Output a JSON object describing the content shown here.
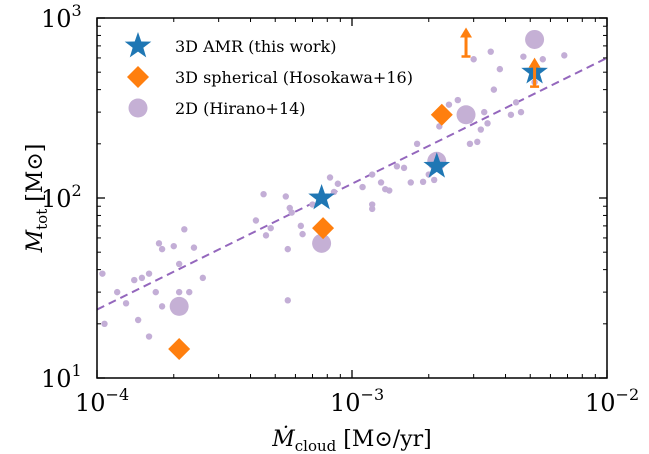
{
  "chart_data": {
    "type": "scatter",
    "xscale": "log",
    "yscale": "log",
    "xlim": [
      0.0001,
      0.01
    ],
    "ylim": [
      10,
      1000
    ],
    "xticks": [
      {
        "value": 0.0001,
        "base": "10",
        "exp": "−4"
      },
      {
        "value": 0.001,
        "base": "10",
        "exp": "−3"
      },
      {
        "value": 0.01,
        "base": "10",
        "exp": "−2"
      }
    ],
    "yticks": [
      {
        "value": 10,
        "base": "10",
        "exp": "1"
      },
      {
        "value": 100,
        "base": "10",
        "exp": "2"
      },
      {
        "value": 1000,
        "base": "10",
        "exp": "3"
      }
    ],
    "xlabel": {
      "main": "Ṁ",
      "sub": "cloud",
      "unit": " [M⊙/yr]"
    },
    "ylabel": {
      "main": "M",
      "sub": "tot",
      "unit": " [M⊙]"
    },
    "legend_position": "top-left",
    "colors": {
      "amr": "#1f77b4",
      "spherical": "#ff7f0e",
      "hirano": "#c5b0d5",
      "hirano_small": "#c3aed6",
      "fit": "#9467bd"
    },
    "series": [
      {
        "name": "3D AMR (this work)",
        "marker": "star",
        "points": [
          {
            "x": 0.00076,
            "y": 100
          },
          {
            "x": 0.00215,
            "y": 150
          },
          {
            "x": 0.0052,
            "y": 500
          }
        ]
      },
      {
        "name": "3D spherical (Hosokawa+16)",
        "marker": "diamond",
        "points": [
          {
            "x": 0.00021,
            "y": 14.5
          },
          {
            "x": 0.00077,
            "y": 68
          },
          {
            "x": 0.00225,
            "y": 290
          }
        ],
        "lower_limits": [
          {
            "x": 0.0028,
            "y": 750
          },
          {
            "x": 0.0052,
            "y": 510
          }
        ]
      },
      {
        "name": "2D (Hirano+14)",
        "marker": "circle",
        "points": [
          {
            "x": 0.00021,
            "y": 25
          },
          {
            "x": 0.00076,
            "y": 56
          },
          {
            "x": 0.00215,
            "y": 160
          },
          {
            "x": 0.0028,
            "y": 290
          },
          {
            "x": 0.0052,
            "y": 760
          }
        ]
      }
    ],
    "background_points": [
      {
        "x": 0.000105,
        "y": 38
      },
      {
        "x": 0.000107,
        "y": 20
      },
      {
        "x": 0.00012,
        "y": 30
      },
      {
        "x": 0.00013,
        "y": 26
      },
      {
        "x": 0.00014,
        "y": 35
      },
      {
        "x": 0.000145,
        "y": 21
      },
      {
        "x": 0.00015,
        "y": 36
      },
      {
        "x": 0.00016,
        "y": 38
      },
      {
        "x": 0.00017,
        "y": 30
      },
      {
        "x": 0.000175,
        "y": 56
      },
      {
        "x": 0.00018,
        "y": 52
      },
      {
        "x": 0.00016,
        "y": 17
      },
      {
        "x": 0.00018,
        "y": 25
      },
      {
        "x": 0.0002,
        "y": 54
      },
      {
        "x": 0.00021,
        "y": 30
      },
      {
        "x": 0.00021,
        "y": 43
      },
      {
        "x": 0.00022,
        "y": 67
      },
      {
        "x": 0.00023,
        "y": 30
      },
      {
        "x": 0.00024,
        "y": 53
      },
      {
        "x": 0.00026,
        "y": 36
      },
      {
        "x": 0.00042,
        "y": 75
      },
      {
        "x": 0.00045,
        "y": 105
      },
      {
        "x": 0.00046,
        "y": 62
      },
      {
        "x": 0.00048,
        "y": 68
      },
      {
        "x": 0.00055,
        "y": 102
      },
      {
        "x": 0.00056,
        "y": 52
      },
      {
        "x": 0.00057,
        "y": 88
      },
      {
        "x": 0.00058,
        "y": 83
      },
      {
        "x": 0.00056,
        "y": 27
      },
      {
        "x": 0.00063,
        "y": 70
      },
      {
        "x": 0.00064,
        "y": 63
      },
      {
        "x": 0.0007,
        "y": 92
      },
      {
        "x": 0.00082,
        "y": 130
      },
      {
        "x": 0.00085,
        "y": 108
      },
      {
        "x": 0.00088,
        "y": 120
      },
      {
        "x": 0.0011,
        "y": 115
      },
      {
        "x": 0.0012,
        "y": 135
      },
      {
        "x": 0.0012,
        "y": 92
      },
      {
        "x": 0.0012,
        "y": 87
      },
      {
        "x": 0.0013,
        "y": 122
      },
      {
        "x": 0.00135,
        "y": 112
      },
      {
        "x": 0.0014,
        "y": 110
      },
      {
        "x": 0.0015,
        "y": 150
      },
      {
        "x": 0.0016,
        "y": 147
      },
      {
        "x": 0.0017,
        "y": 122
      },
      {
        "x": 0.0018,
        "y": 200
      },
      {
        "x": 0.0019,
        "y": 123
      },
      {
        "x": 0.002,
        "y": 135
      },
      {
        "x": 0.0021,
        "y": 126
      },
      {
        "x": 0.0022,
        "y": 250
      },
      {
        "x": 0.0024,
        "y": 330
      },
      {
        "x": 0.0026,
        "y": 350
      },
      {
        "x": 0.0029,
        "y": 200
      },
      {
        "x": 0.0029,
        "y": 270
      },
      {
        "x": 0.003,
        "y": 590
      },
      {
        "x": 0.0031,
        "y": 205
      },
      {
        "x": 0.0032,
        "y": 240
      },
      {
        "x": 0.0033,
        "y": 300
      },
      {
        "x": 0.0034,
        "y": 260
      },
      {
        "x": 0.0035,
        "y": 650
      },
      {
        "x": 0.0036,
        "y": 400
      },
      {
        "x": 0.0038,
        "y": 520
      },
      {
        "x": 0.0042,
        "y": 290
      },
      {
        "x": 0.0044,
        "y": 340
      },
      {
        "x": 0.0046,
        "y": 300
      },
      {
        "x": 0.0047,
        "y": 610
      },
      {
        "x": 0.0052,
        "y": 440
      },
      {
        "x": 0.0056,
        "y": 590
      },
      {
        "x": 0.0068,
        "y": 620
      }
    ],
    "fit_line": {
      "style": "dashed",
      "points": [
        {
          "x": 0.0001,
          "y": 24
        },
        {
          "x": 0.01,
          "y": 600
        }
      ]
    }
  }
}
